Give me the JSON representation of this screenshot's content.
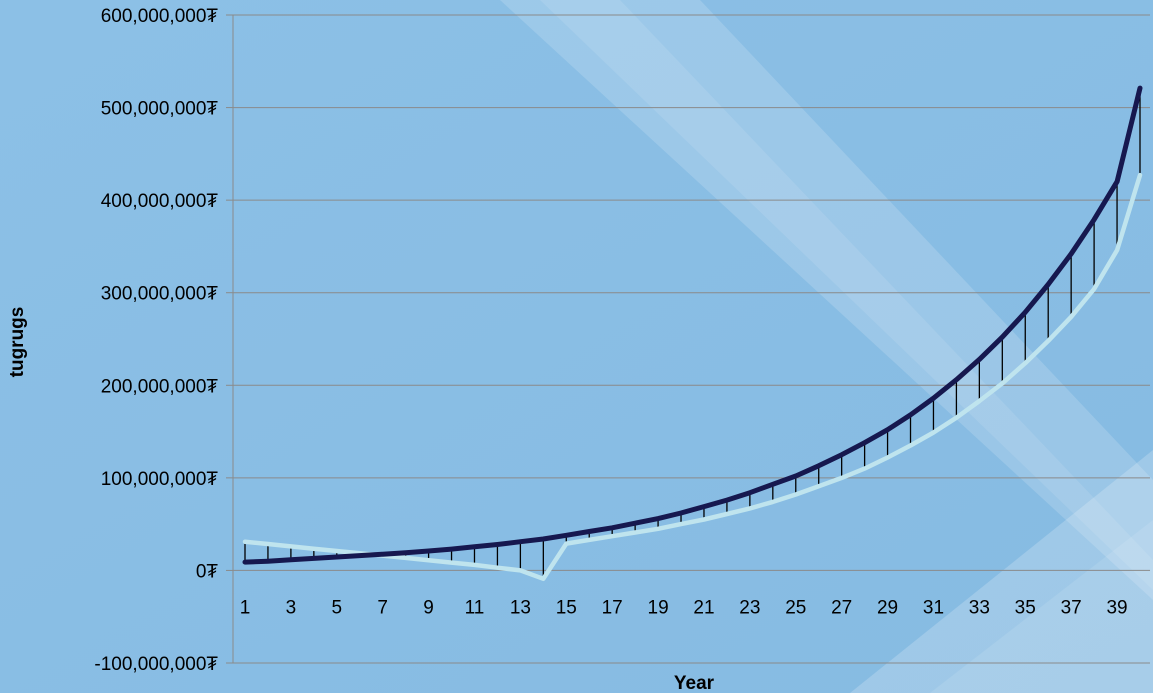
{
  "chart_data": {
    "type": "line",
    "xlabel": "Year",
    "ylabel": "tugrugs",
    "ylim": [
      -100000000,
      600000000
    ],
    "y_ticks": [
      -100000000,
      0,
      100000000,
      200000000,
      300000000,
      400000000,
      500000000,
      600000000
    ],
    "y_tick_labels": [
      "-100,000,000₮",
      "0₮",
      "100,000,000₮",
      "200,000,000₮",
      "300,000,000₮",
      "400,000,000₮",
      "500,000,000₮",
      "600,000,000₮"
    ],
    "x": [
      1,
      2,
      3,
      4,
      5,
      6,
      7,
      8,
      9,
      10,
      11,
      12,
      13,
      14,
      15,
      16,
      17,
      18,
      19,
      20,
      21,
      22,
      23,
      24,
      25,
      26,
      27,
      28,
      29,
      30,
      31,
      32,
      33,
      34,
      35,
      36,
      37,
      38,
      39,
      40
    ],
    "x_tick_labels": [
      "1",
      "3",
      "5",
      "7",
      "9",
      "11",
      "13",
      "15",
      "17",
      "19",
      "21",
      "23",
      "25",
      "27",
      "29",
      "31",
      "33",
      "35",
      "37",
      "39"
    ],
    "grid": true,
    "drop_lines": true,
    "series": [
      {
        "color": "#16184f",
        "values": [
          9000000,
          10000000,
          11500000,
          13000000,
          14500000,
          16000000,
          17500000,
          19000000,
          21000000,
          23000000,
          25500000,
          28000000,
          31000000,
          34000000,
          38000000,
          42000000,
          46000000,
          51000000,
          56000000,
          62000000,
          69000000,
          76000000,
          84000000,
          93000000,
          102000000,
          113000000,
          125000000,
          138000000,
          152000000,
          168000000,
          186000000,
          206000000,
          228000000,
          252000000,
          279000000,
          309000000,
          342000000,
          379000000,
          420000000,
          521000000
        ]
      },
      {
        "color": "#bfe4ee",
        "values": [
          31000000,
          28500000,
          26000000,
          23500000,
          21000000,
          18500000,
          16000000,
          13500000,
          11000000,
          8500000,
          6000000,
          3000000,
          0,
          -9000000,
          29000000,
          33000000,
          37000000,
          41000000,
          45000000,
          50000000,
          55000000,
          61000000,
          67000000,
          74000000,
          82000000,
          91000000,
          100000000,
          110000000,
          122000000,
          135000000,
          149000000,
          165000000,
          183000000,
          202000000,
          224000000,
          248000000,
          274000000,
          304000000,
          346000000,
          427000000
        ]
      }
    ]
  }
}
